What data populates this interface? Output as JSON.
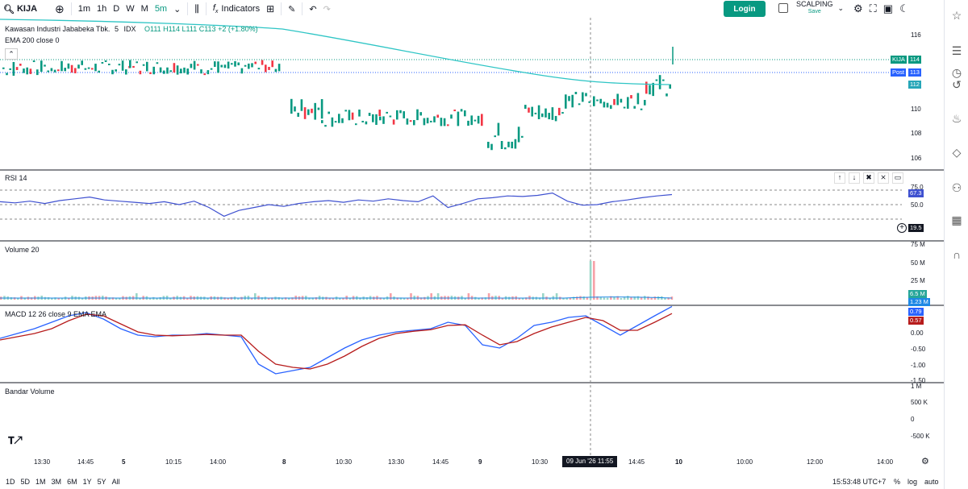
{
  "toolbar": {
    "symbol": "KIJA",
    "intervals": [
      "1m",
      "1h",
      "D",
      "W",
      "M"
    ],
    "selected_interval": "5m",
    "indicators_label": "Indicators",
    "login_label": "Login",
    "layout_name": "SCALPING",
    "layout_status": "Save"
  },
  "legend": {
    "name": "Kawasan Industri Jababeka Tbk.",
    "interval": "5",
    "exchange": "IDX",
    "ohlc": "O111 H114 L111 C113 +2 (+1.80%)",
    "ema_label": "EMA 200 close 0"
  },
  "price_axis": {
    "ticks": [
      "116",
      "110",
      "108",
      "106"
    ],
    "symbol_badge": "KIJA",
    "last_price": "114",
    "post_label": "Post",
    "post_price": "113",
    "ema_price": "112"
  },
  "rsi": {
    "title": "RSI 14",
    "ticks": [
      "75.0",
      "50.0"
    ],
    "value": "67.3",
    "low": "19.5"
  },
  "volume": {
    "title": "Volume 20",
    "ticks": [
      "75 M",
      "50 M",
      "25 M"
    ],
    "value1": "6.5 M",
    "value2": "1.23 M"
  },
  "macd": {
    "title": "MACD 12 26 close 9 EMA EMA",
    "ticks": [
      "0.00",
      "-0.50",
      "-1.00",
      "-1.50"
    ],
    "macd_value": "0.79",
    "signal_value": "0.57"
  },
  "bandar": {
    "title": "Bandar Volume",
    "ticks": [
      "1 M",
      "500 K",
      "0",
      "-500 K"
    ]
  },
  "time_axis": {
    "labels": [
      "13:30",
      "14:45",
      "5",
      "10:15",
      "14:00",
      "8",
      "10:30",
      "13:30",
      "14:45",
      "9",
      "10:30",
      "14:45",
      "10",
      "10:00",
      "12:00",
      "14:00"
    ],
    "crosshair": "09 Jun '26  11:55"
  },
  "bottom": {
    "ranges": [
      "1D",
      "5D",
      "1M",
      "3M",
      "6M",
      "1Y",
      "5Y",
      "All"
    ],
    "clock": "15:53:48 UTC+7",
    "percent": "%",
    "log": "log",
    "auto": "auto"
  },
  "colors": {
    "up": "#089981",
    "down": "#f23645",
    "ema": "#2ec5c5",
    "rsi": "#3f51d0",
    "macd": "#2962ff",
    "signal": "#b71c1c"
  },
  "chart_data": {
    "type": "line",
    "rsi_series": [
      {
        "name": "RSI 14",
        "values": [
          55,
          53,
          56,
          52,
          57,
          60,
          63,
          58,
          56,
          54,
          52,
          55,
          50,
          56,
          45,
          30,
          40,
          45,
          50,
          47,
          52,
          55,
          57,
          54,
          58,
          56,
          60,
          57,
          55,
          65,
          45,
          52,
          60,
          62,
          65,
          64,
          66,
          70,
          56,
          49,
          50,
          55,
          58,
          62,
          65,
          67.3
        ]
      }
    ],
    "macd_series": [
      {
        "name": "MACD",
        "values": [
          -0.2,
          -0.05,
          0.1,
          0.3,
          0.5,
          0.6,
          0.4,
          0.1,
          -0.1,
          -0.15,
          -0.1,
          -0.1,
          -0.05,
          -0.1,
          -0.15,
          -1.0,
          -1.3,
          -1.2,
          -1.1,
          -0.8,
          -0.5,
          -0.25,
          -0.1,
          0,
          0.05,
          0.1,
          0.3,
          0.2,
          -0.4,
          -0.5,
          -0.2,
          0.2,
          0.3,
          0.45,
          0.5,
          0.2,
          -0.1,
          0.2,
          0.5,
          0.79
        ]
      },
      {
        "name": "Signal",
        "values": [
          -0.25,
          -0.15,
          -0.05,
          0.1,
          0.35,
          0.55,
          0.5,
          0.25,
          0.0,
          -0.1,
          -0.12,
          -0.1,
          -0.08,
          -0.1,
          -0.1,
          -0.6,
          -1.0,
          -1.1,
          -1.15,
          -1.0,
          -0.75,
          -0.45,
          -0.2,
          -0.05,
          0.02,
          0.07,
          0.2,
          0.22,
          -0.1,
          -0.4,
          -0.3,
          -0.05,
          0.15,
          0.3,
          0.45,
          0.35,
          0.05,
          0.05,
          0.3,
          0.57
        ]
      }
    ]
  }
}
